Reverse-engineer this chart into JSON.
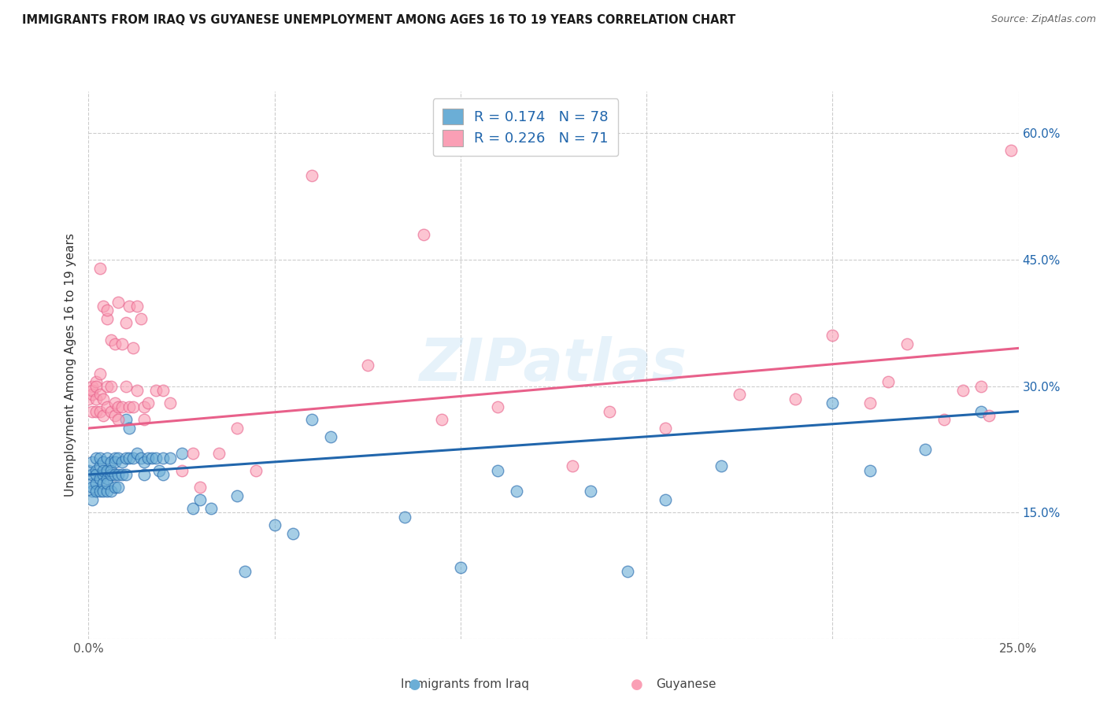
{
  "title": "IMMIGRANTS FROM IRAQ VS GUYANESE UNEMPLOYMENT AMONG AGES 16 TO 19 YEARS CORRELATION CHART",
  "source": "Source: ZipAtlas.com",
  "ylabel": "Unemployment Among Ages 16 to 19 years",
  "xlim": [
    0.0,
    0.25
  ],
  "ylim": [
    0.0,
    0.65
  ],
  "x_ticks": [
    0.0,
    0.05,
    0.1,
    0.15,
    0.2,
    0.25
  ],
  "x_tick_labels": [
    "0.0%",
    "",
    "",
    "",
    "",
    "25.0%"
  ],
  "y_ticks": [
    0.0,
    0.15,
    0.3,
    0.45,
    0.6
  ],
  "y_tick_labels_right": [
    "",
    "15.0%",
    "30.0%",
    "45.0%",
    "60.0%"
  ],
  "R_blue": 0.174,
  "N_blue": 78,
  "R_pink": 0.226,
  "N_pink": 71,
  "blue_color": "#6baed6",
  "pink_color": "#fa9fb5",
  "blue_line_color": "#2166ac",
  "pink_line_color": "#e8608a",
  "legend_label_blue": "Immigrants from Iraq",
  "legend_label_pink": "Guyanese",
  "watermark": "ZIPatlas",
  "blue_scatter_x": [
    0.0,
    0.001,
    0.001,
    0.001,
    0.001,
    0.001,
    0.001,
    0.002,
    0.002,
    0.002,
    0.002,
    0.002,
    0.003,
    0.003,
    0.003,
    0.003,
    0.004,
    0.004,
    0.004,
    0.004,
    0.004,
    0.005,
    0.005,
    0.005,
    0.005,
    0.005,
    0.006,
    0.006,
    0.006,
    0.006,
    0.007,
    0.007,
    0.007,
    0.007,
    0.008,
    0.008,
    0.008,
    0.009,
    0.009,
    0.01,
    0.01,
    0.01,
    0.011,
    0.011,
    0.012,
    0.013,
    0.014,
    0.015,
    0.015,
    0.016,
    0.017,
    0.018,
    0.019,
    0.02,
    0.02,
    0.022,
    0.025,
    0.028,
    0.03,
    0.033,
    0.04,
    0.042,
    0.05,
    0.055,
    0.06,
    0.065,
    0.085,
    0.1,
    0.11,
    0.115,
    0.135,
    0.145,
    0.155,
    0.17,
    0.2,
    0.21,
    0.225,
    0.24
  ],
  "blue_scatter_y": [
    0.2,
    0.185,
    0.21,
    0.175,
    0.195,
    0.165,
    0.18,
    0.2,
    0.215,
    0.185,
    0.195,
    0.175,
    0.205,
    0.19,
    0.175,
    0.215,
    0.195,
    0.21,
    0.185,
    0.175,
    0.2,
    0.215,
    0.19,
    0.175,
    0.2,
    0.185,
    0.21,
    0.195,
    0.175,
    0.2,
    0.215,
    0.195,
    0.21,
    0.18,
    0.215,
    0.195,
    0.18,
    0.21,
    0.195,
    0.26,
    0.215,
    0.195,
    0.25,
    0.215,
    0.215,
    0.22,
    0.215,
    0.21,
    0.195,
    0.215,
    0.215,
    0.215,
    0.2,
    0.215,
    0.195,
    0.215,
    0.22,
    0.155,
    0.165,
    0.155,
    0.17,
    0.08,
    0.135,
    0.125,
    0.26,
    0.24,
    0.145,
    0.085,
    0.2,
    0.175,
    0.175,
    0.08,
    0.165,
    0.205,
    0.28,
    0.2,
    0.225,
    0.27
  ],
  "pink_scatter_x": [
    0.0,
    0.001,
    0.001,
    0.001,
    0.001,
    0.002,
    0.002,
    0.002,
    0.002,
    0.003,
    0.003,
    0.003,
    0.003,
    0.004,
    0.004,
    0.004,
    0.005,
    0.005,
    0.005,
    0.005,
    0.006,
    0.006,
    0.006,
    0.007,
    0.007,
    0.007,
    0.008,
    0.008,
    0.008,
    0.009,
    0.009,
    0.01,
    0.01,
    0.011,
    0.011,
    0.012,
    0.012,
    0.013,
    0.013,
    0.014,
    0.015,
    0.015,
    0.016,
    0.018,
    0.02,
    0.022,
    0.025,
    0.028,
    0.03,
    0.035,
    0.04,
    0.045,
    0.06,
    0.075,
    0.09,
    0.095,
    0.11,
    0.13,
    0.14,
    0.155,
    0.175,
    0.19,
    0.2,
    0.21,
    0.215,
    0.22,
    0.23,
    0.235,
    0.24,
    0.242,
    0.248
  ],
  "pink_scatter_y": [
    0.285,
    0.3,
    0.29,
    0.27,
    0.295,
    0.305,
    0.27,
    0.285,
    0.3,
    0.44,
    0.315,
    0.29,
    0.27,
    0.395,
    0.285,
    0.265,
    0.38,
    0.3,
    0.275,
    0.39,
    0.355,
    0.3,
    0.27,
    0.35,
    0.28,
    0.265,
    0.4,
    0.275,
    0.26,
    0.35,
    0.275,
    0.375,
    0.3,
    0.395,
    0.275,
    0.345,
    0.275,
    0.395,
    0.295,
    0.38,
    0.275,
    0.26,
    0.28,
    0.295,
    0.295,
    0.28,
    0.2,
    0.22,
    0.18,
    0.22,
    0.25,
    0.2,
    0.55,
    0.325,
    0.48,
    0.26,
    0.275,
    0.205,
    0.27,
    0.25,
    0.29,
    0.285,
    0.36,
    0.28,
    0.305,
    0.35,
    0.26,
    0.295,
    0.3,
    0.265,
    0.58
  ]
}
